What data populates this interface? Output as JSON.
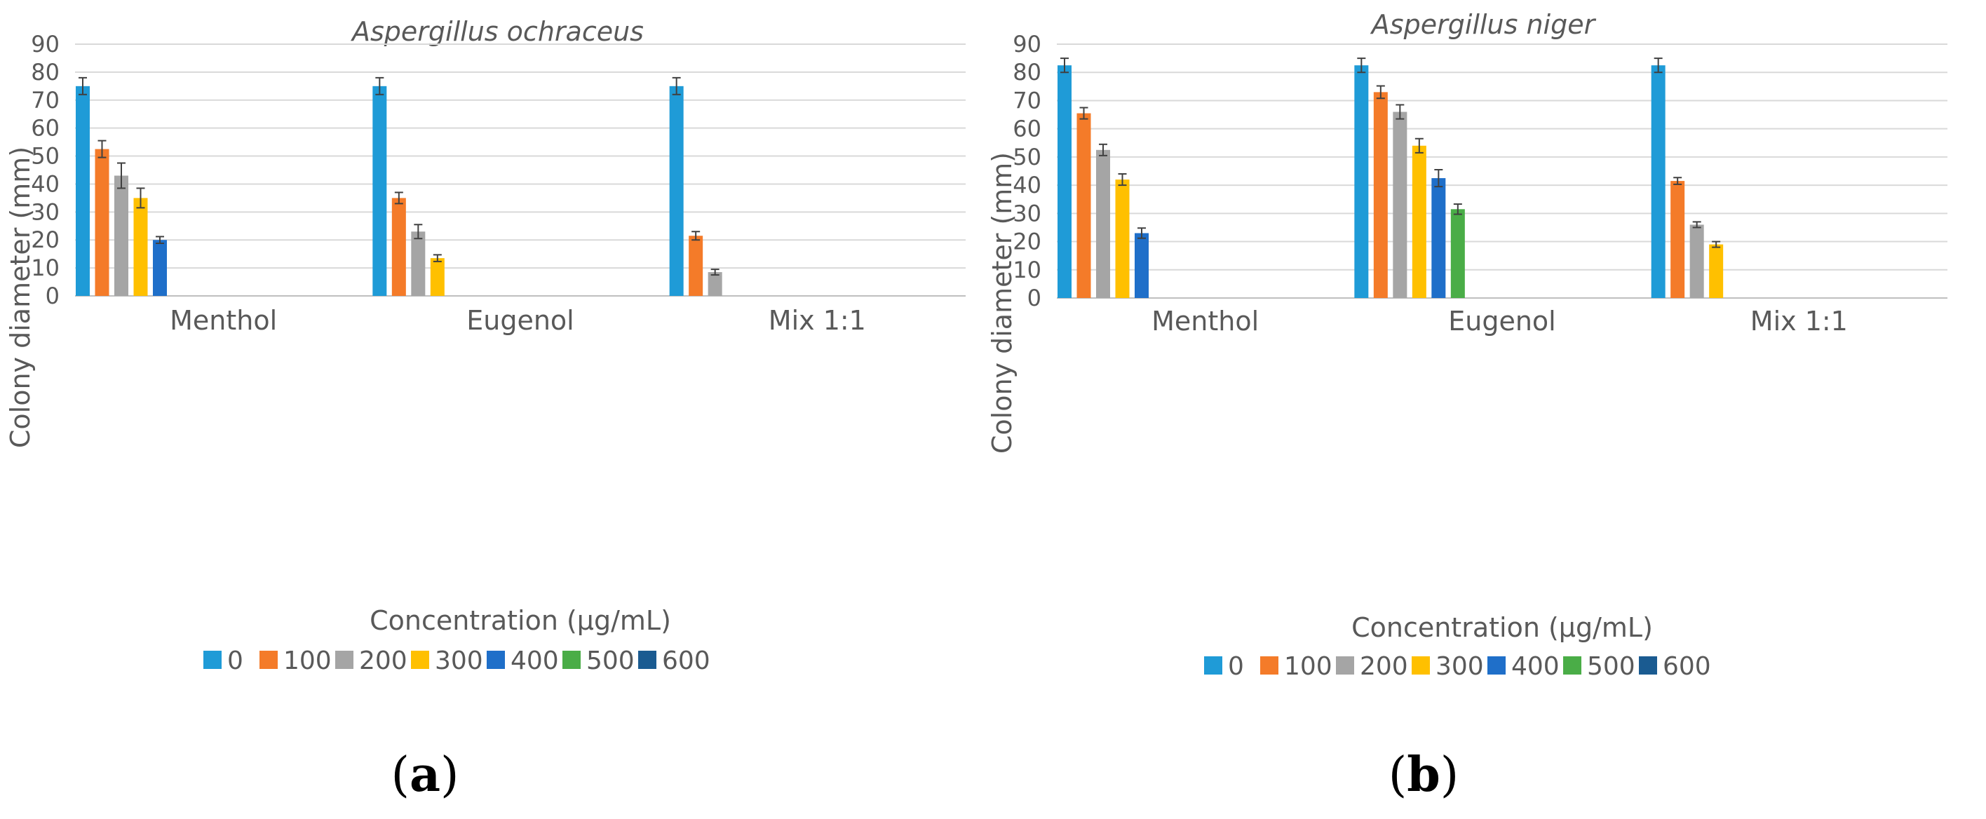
{
  "chart_data": [
    {
      "type": "bar",
      "panel": "a",
      "title": "Aspergillus ochraceus",
      "xlabel": "Concentration (µg/mL)",
      "ylabel": "Colony diameter (mm)",
      "ylim": [
        0,
        90
      ],
      "yticks": [
        0,
        10,
        20,
        30,
        40,
        50,
        60,
        70,
        80,
        90
      ],
      "grid": true,
      "legend": "bottom",
      "categories": [
        "Menthol",
        "Eugenol",
        "Mix 1:1"
      ],
      "series": [
        {
          "name": "0",
          "color": "#1f9bd7",
          "values": [
            75,
            75,
            75
          ],
          "errors": [
            3,
            3,
            3
          ]
        },
        {
          "name": "100",
          "color": "#f47b29",
          "values": [
            52.5,
            35,
            21.5
          ],
          "errors": [
            3,
            2,
            1.5
          ]
        },
        {
          "name": "200",
          "color": "#a5a5a5",
          "values": [
            43,
            23,
            8.5
          ],
          "errors": [
            4.5,
            2.5,
            1
          ]
        },
        {
          "name": "300",
          "color": "#ffc000",
          "values": [
            35,
            13.5,
            0
          ],
          "errors": [
            3.5,
            1.2,
            0
          ]
        },
        {
          "name": "400",
          "color": "#1f6fc9",
          "values": [
            20,
            0,
            0
          ],
          "errors": [
            1.2,
            0,
            0
          ]
        },
        {
          "name": "500",
          "color": "#4aad47",
          "values": [
            0,
            0,
            0
          ],
          "errors": [
            0,
            0,
            0
          ]
        },
        {
          "name": "600",
          "color": "#1a5b91",
          "values": [
            0,
            0,
            0
          ],
          "errors": [
            0,
            0,
            0
          ]
        }
      ]
    },
    {
      "type": "bar",
      "panel": "b",
      "title": "Aspergillus niger",
      "xlabel": "Concentration (µg/mL)",
      "ylabel": "Colony diameter (mm)",
      "ylim": [
        0,
        90
      ],
      "yticks": [
        0,
        10,
        20,
        30,
        40,
        50,
        60,
        70,
        80,
        90
      ],
      "grid": true,
      "legend": "bottom",
      "categories": [
        "Menthol",
        "Eugenol",
        "Mix 1:1"
      ],
      "series": [
        {
          "name": "0",
          "color": "#1f9bd7",
          "values": [
            82.5,
            82.5,
            82.5
          ],
          "errors": [
            2.5,
            2.5,
            2.5
          ]
        },
        {
          "name": "100",
          "color": "#f47b29",
          "values": [
            65.5,
            73,
            41.5
          ],
          "errors": [
            2,
            2.2,
            1.2
          ]
        },
        {
          "name": "200",
          "color": "#a5a5a5",
          "values": [
            52.5,
            66,
            26
          ],
          "errors": [
            2,
            2.5,
            1
          ]
        },
        {
          "name": "300",
          "color": "#ffc000",
          "values": [
            42,
            54,
            19
          ],
          "errors": [
            2,
            2.5,
            1
          ]
        },
        {
          "name": "400",
          "color": "#1f6fc9",
          "values": [
            23,
            42.5,
            0
          ],
          "errors": [
            1.8,
            3,
            0
          ]
        },
        {
          "name": "500",
          "color": "#4aad47",
          "values": [
            0,
            31.5,
            0
          ],
          "errors": [
            0,
            1.8,
            0
          ]
        },
        {
          "name": "600",
          "color": "#1a5b91",
          "values": [
            0,
            0,
            0
          ],
          "errors": [
            0,
            0,
            0
          ]
        }
      ]
    }
  ],
  "panel_labels": {
    "a": {
      "open": "(",
      "letter": "a",
      "close": ")"
    },
    "b": {
      "open": "(",
      "letter": "b",
      "close": ")"
    }
  }
}
